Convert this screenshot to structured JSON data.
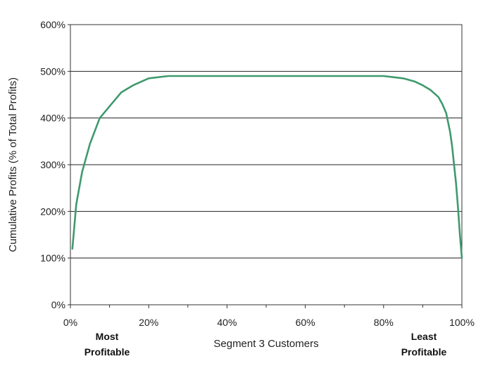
{
  "chart_data": {
    "type": "line",
    "title": "",
    "xlabel": "Segment 3 Customers",
    "ylabel": "Cumulative Profits (% of Total Profits)",
    "xlim": [
      0,
      100
    ],
    "ylim": [
      0,
      600
    ],
    "x_ticks": [
      0,
      20,
      40,
      60,
      80,
      100
    ],
    "x_tick_labels": [
      "0%",
      "20%",
      "40%",
      "60%",
      "80%",
      "100%"
    ],
    "y_ticks": [
      0,
      100,
      200,
      300,
      400,
      500,
      600
    ],
    "y_tick_labels": [
      "0%",
      "100%",
      "200%",
      "300%",
      "400%",
      "500%",
      "600%"
    ],
    "grid": "horizontal",
    "legend": "none",
    "line_color": "#3f9a6e",
    "annotations": {
      "left": [
        "Most",
        "Profitable"
      ],
      "right": [
        "Least",
        "Profitable"
      ]
    },
    "series": [
      {
        "x": [
          0.5,
          1.5,
          3,
          5,
          7.5,
          10,
          13,
          16,
          20,
          25,
          30,
          40,
          50,
          60,
          70,
          80,
          82,
          85,
          88,
          90,
          92,
          94,
          95,
          96,
          97,
          97.5,
          98,
          98.5,
          99,
          99.5,
          100
        ],
        "values": [
          120,
          215,
          285,
          345,
          400,
          425,
          455,
          470,
          485,
          490,
          490,
          490,
          490,
          490,
          490,
          490,
          488,
          485,
          478,
          470,
          460,
          445,
          430,
          410,
          370,
          340,
          300,
          260,
          210,
          150,
          100
        ]
      }
    ]
  }
}
